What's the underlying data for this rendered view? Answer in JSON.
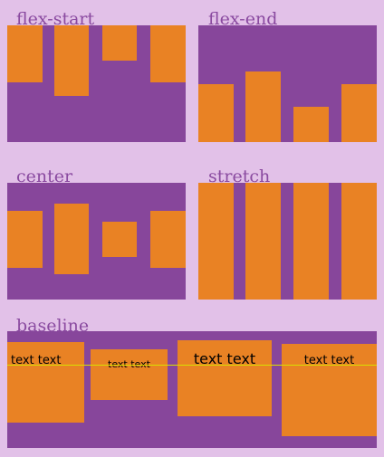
{
  "sections": {
    "flex_start": {
      "label": "flex-start"
    },
    "flex_end": {
      "label": "flex-end"
    },
    "center": {
      "label": "center"
    },
    "stretch": {
      "label": "stretch"
    },
    "baseline": {
      "label": "baseline",
      "items": [
        "text text",
        "text text",
        "text text",
        "text text"
      ]
    }
  },
  "colors": {
    "page_background": "#e2c1e8",
    "label_text": "#8a4aa0",
    "container": "#87469b",
    "item": "#e98224",
    "baseline_guide": "#d9e000"
  }
}
